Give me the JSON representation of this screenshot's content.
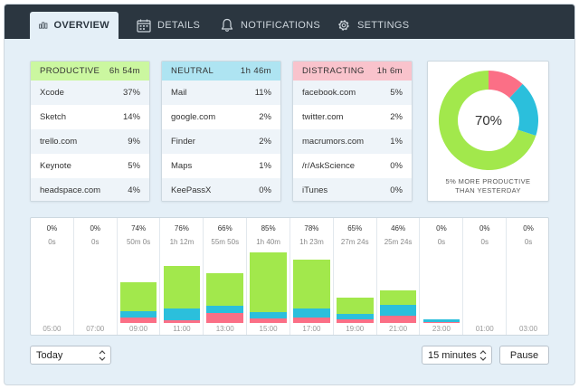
{
  "tabs": [
    {
      "label": "OVERVIEW",
      "icon": "bar-chart-icon",
      "active": true
    },
    {
      "label": "DETAILS",
      "icon": "calendar-icon",
      "active": false
    },
    {
      "label": "NOTIFICATIONS",
      "icon": "bell-icon",
      "active": false
    },
    {
      "label": "SETTINGS",
      "icon": "gear-icon",
      "active": false
    }
  ],
  "categories": {
    "productive": {
      "title": "PRODUCTIVE",
      "total": "6h 54m",
      "color": "#cbf7a0",
      "items": [
        {
          "name": "Xcode",
          "pct": "37%"
        },
        {
          "name": "Sketch",
          "pct": "14%"
        },
        {
          "name": "trello.com",
          "pct": "9%"
        },
        {
          "name": "Keynote",
          "pct": "5%"
        },
        {
          "name": "headspace.com",
          "pct": "4%"
        }
      ]
    },
    "neutral": {
      "title": "NEUTRAL",
      "total": "1h 46m",
      "color": "#aee4f2",
      "items": [
        {
          "name": "Mail",
          "pct": "11%"
        },
        {
          "name": "google.com",
          "pct": "2%"
        },
        {
          "name": "Finder",
          "pct": "2%"
        },
        {
          "name": "Maps",
          "pct": "1%"
        },
        {
          "name": "KeePassX",
          "pct": "0%"
        }
      ]
    },
    "distracting": {
      "title": "DISTRACTING",
      "total": "1h 6m",
      "color": "#f9c3cc",
      "items": [
        {
          "name": "facebook.com",
          "pct": "5%"
        },
        {
          "name": "twitter.com",
          "pct": "2%"
        },
        {
          "name": "macrumors.com",
          "pct": "1%"
        },
        {
          "name": "/r/AskScience",
          "pct": "0%"
        },
        {
          "name": "iTunes",
          "pct": "0%"
        }
      ]
    }
  },
  "summary": {
    "productive_pct": "70%",
    "caption_line1": "5% MORE PRODUCTIVE",
    "caption_line2": "THAN YESTERDAY",
    "shares": {
      "productive": 0.7,
      "neutral": 0.18,
      "distracting": 0.12
    }
  },
  "colors": {
    "productive": "#a2e84c",
    "neutral": "#2bbfdc",
    "distracting": "#fb6f86"
  },
  "timeline": [
    {
      "pct": "0%",
      "dur": "0s",
      "time": "05:00",
      "p": 0,
      "n": 0,
      "d": 0
    },
    {
      "pct": "0%",
      "dur": "0s",
      "time": "07:00",
      "p": 0,
      "n": 0,
      "d": 0
    },
    {
      "pct": "74%",
      "dur": "50m 0s",
      "time": "09:00",
      "p": 32,
      "n": 7,
      "d": 6
    },
    {
      "pct": "76%",
      "dur": "1h 12m",
      "time": "11:00",
      "p": 47,
      "n": 13,
      "d": 3
    },
    {
      "pct": "66%",
      "dur": "55m 50s",
      "time": "13:00",
      "p": 36,
      "n": 8,
      "d": 11
    },
    {
      "pct": "85%",
      "dur": "1h 40m",
      "time": "15:00",
      "p": 66,
      "n": 7,
      "d": 5
    },
    {
      "pct": "78%",
      "dur": "1h 23m",
      "time": "17:00",
      "p": 54,
      "n": 10,
      "d": 6
    },
    {
      "pct": "65%",
      "dur": "27m 24s",
      "time": "19:00",
      "p": 18,
      "n": 6,
      "d": 4
    },
    {
      "pct": "46%",
      "dur": "25m 24s",
      "time": "21:00",
      "p": 16,
      "n": 12,
      "d": 8
    },
    {
      "pct": "0%",
      "dur": "0s",
      "time": "23:00",
      "p": 0,
      "n": 3,
      "d": 1
    },
    {
      "pct": "0%",
      "dur": "0s",
      "time": "01:00",
      "p": 0,
      "n": 0,
      "d": 0
    },
    {
      "pct": "0%",
      "dur": "0s",
      "time": "03:00",
      "p": 0,
      "n": 0,
      "d": 0
    }
  ],
  "controls": {
    "range_value": "Today",
    "interval_value": "15 minutes",
    "pause_label": "Pause"
  }
}
